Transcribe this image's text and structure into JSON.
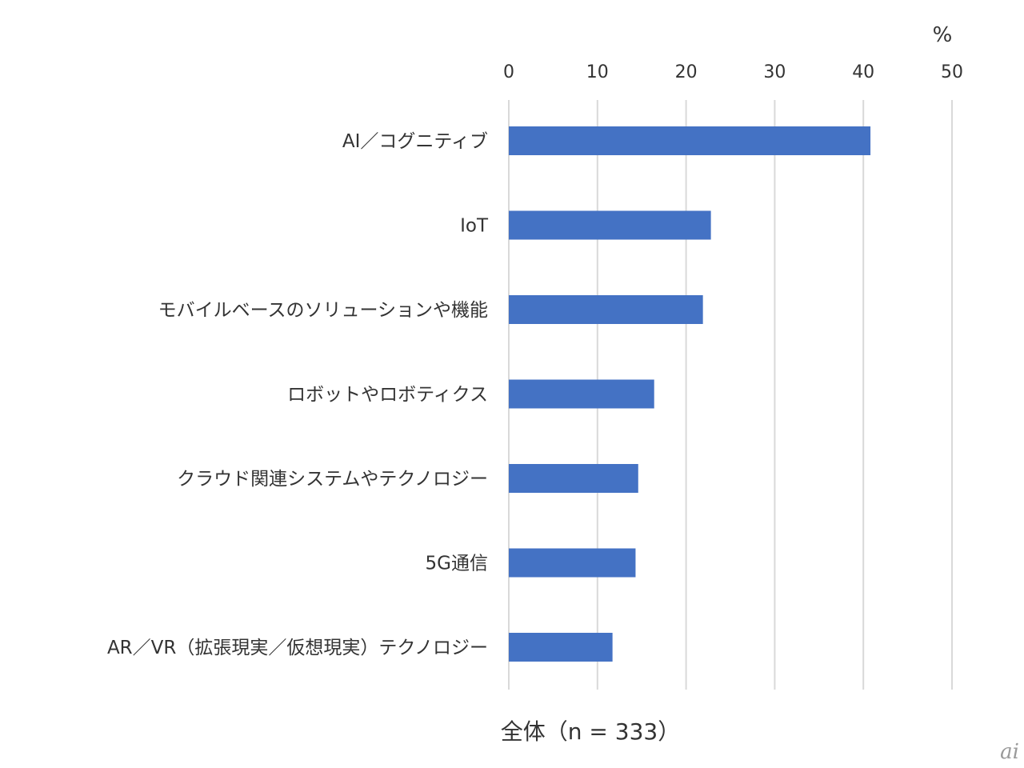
{
  "chart_data": {
    "type": "bar",
    "orientation": "horizontal",
    "title": "",
    "xlabel": "全体（n = 333）",
    "ylabel": "",
    "unit": "%",
    "xlim": [
      0,
      50
    ],
    "ticks": [
      0,
      10,
      20,
      30,
      40,
      50
    ],
    "grid": true,
    "categories": [
      "AI／コグニティブ",
      "IoT",
      "モバイルベースのソリューションや機能",
      "ロボットやロボティクス",
      "クラウド関連システムやテクノロジー",
      "5G通信",
      "AR／VR（拡張現実／仮想現実）テクノロジー"
    ],
    "values": [
      40.8,
      22.8,
      21.9,
      16.4,
      14.6,
      14.3,
      11.7
    ],
    "bar_color": "#4472C4",
    "grid_color": "#d9d9d9"
  },
  "watermark": "ai"
}
